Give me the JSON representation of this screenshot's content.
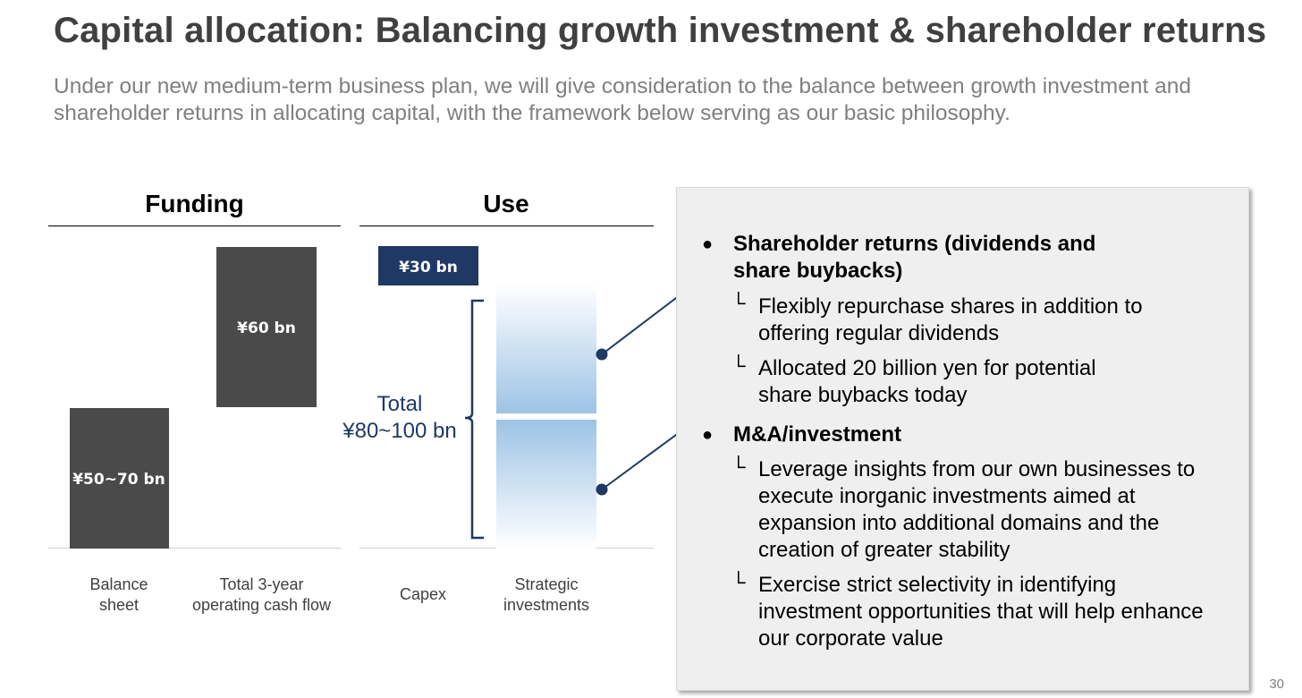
{
  "header": {
    "title": "Capital allocation: Balancing growth investment & shareholder returns",
    "subtitle": "Under our new medium-term business plan, we will give consideration to the balance between growth investment and shareholder returns in allocating capital, with the framework below serving as our basic philosophy."
  },
  "sections": {
    "funding": "Funding",
    "use": "Use"
  },
  "chart_data": {
    "type": "bar",
    "categories": [
      "Balance sheet",
      "Total 3-year operating cash flow",
      "Capex",
      "Strategic investments"
    ],
    "bars": [
      {
        "category": "Balance sheet",
        "label": "¥50~70 bn",
        "color": "#4a4a4a"
      },
      {
        "category": "Total 3-year operating cash flow",
        "label": "¥60 bn",
        "color": "#4a4a4a"
      },
      {
        "category": "Capex",
        "label": "¥30 bn",
        "color": "#1f3864"
      },
      {
        "category": "Strategic investments",
        "label": "",
        "color": "#9dc3e6"
      }
    ],
    "total_label": "Total\n¥80~100 bn"
  },
  "category_labels": {
    "balance_sheet": [
      "Balance",
      "sheet"
    ],
    "cash_flow": [
      "Total 3-year",
      "operating cash flow"
    ],
    "capex": [
      "Capex"
    ],
    "strategic": [
      "Strategic",
      "investments"
    ]
  },
  "total": {
    "line1": "Total",
    "line2": "¥80~100 bn"
  },
  "panel": {
    "items": [
      {
        "bullet": "●",
        "title_line1": "Shareholder returns (dividends and",
        "title_line2": "share buybacks)",
        "subs": [
          {
            "mark": "└",
            "line1": "Flexibly repurchase shares in addition to",
            "line2": "offering regular dividends"
          },
          {
            "mark": "└",
            "line1": "Allocated 20 billion yen for potential",
            "line2": "share buybacks today"
          }
        ]
      },
      {
        "bullet": "●",
        "title_line1": "M&A/investment",
        "subs": [
          {
            "mark": "└",
            "line1": "Leverage insights from our own businesses to",
            "line2": "execute inorganic investments aimed at",
            "line3": "expansion into additional domains and the",
            "line4": "creation of greater stability"
          },
          {
            "mark": "└",
            "line1": "Exercise strict selectivity in identifying",
            "line2": "investment opportunities that will help enhance",
            "line3": "our corporate value"
          }
        ]
      }
    ]
  },
  "page_number": "30",
  "colors": {
    "title": "#404040",
    "subtitle": "#808080",
    "dark_bar": "#4a4a4a",
    "navy": "#1f3864",
    "light_blue": "#9dc3e6",
    "panel_bg": "#efefef"
  }
}
